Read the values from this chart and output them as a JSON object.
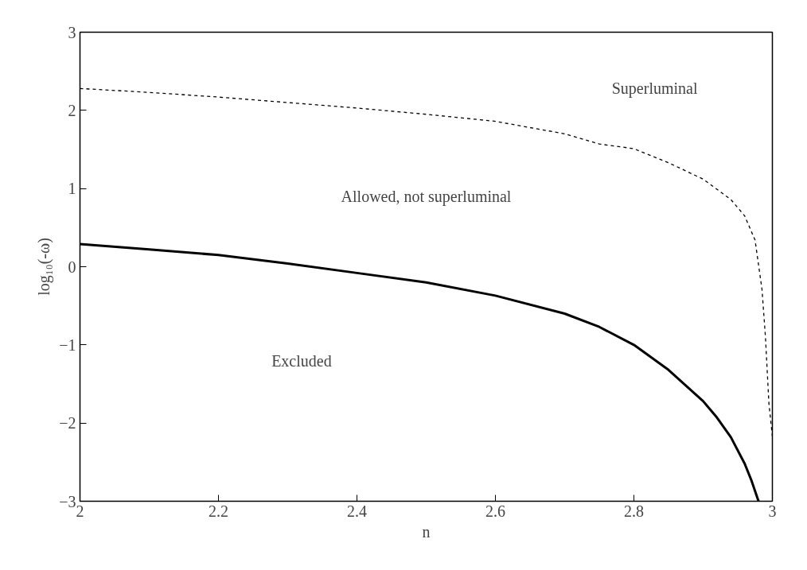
{
  "chart_data": {
    "type": "line",
    "xlabel": "n",
    "ylabel": "log₁₀(-ω)",
    "xlim": [
      2,
      3
    ],
    "ylim": [
      -3,
      3
    ],
    "xticks": [
      2,
      2.2,
      2.4,
      2.6,
      2.8,
      3
    ],
    "yticks": [
      -3,
      -2,
      -1,
      0,
      1,
      2,
      3
    ],
    "grid": false,
    "series": [
      {
        "color": "#000000",
        "line_style": "solid",
        "x": [
          2.0,
          2.1,
          2.2,
          2.3,
          2.4,
          2.5,
          2.6,
          2.7,
          2.75,
          2.8,
          2.85,
          2.9,
          2.92,
          2.94,
          2.96,
          2.97,
          2.98
        ],
        "values": [
          0.29,
          0.22,
          0.15,
          0.04,
          -0.08,
          -0.2,
          -0.37,
          -0.6,
          -0.77,
          -1.0,
          -1.32,
          -1.72,
          -1.93,
          -2.18,
          -2.52,
          -2.74,
          -3.0
        ]
      },
      {
        "color": "#000000",
        "line_style": "dashed",
        "x": [
          2.0,
          2.1,
          2.2,
          2.3,
          2.4,
          2.5,
          2.6,
          2.7,
          2.75,
          2.8,
          2.85,
          2.9,
          2.94,
          2.96,
          2.975,
          2.985,
          2.99,
          2.995,
          3.0
        ],
        "values": [
          2.28,
          2.23,
          2.17,
          2.1,
          2.03,
          1.95,
          1.86,
          1.7,
          1.57,
          1.51,
          1.33,
          1.12,
          0.86,
          0.65,
          0.34,
          -0.29,
          -0.9,
          -1.75,
          -2.17
        ]
      }
    ],
    "annotations": [
      "Superluminal",
      "Allowed, not superluminal",
      "Excluded"
    ]
  }
}
